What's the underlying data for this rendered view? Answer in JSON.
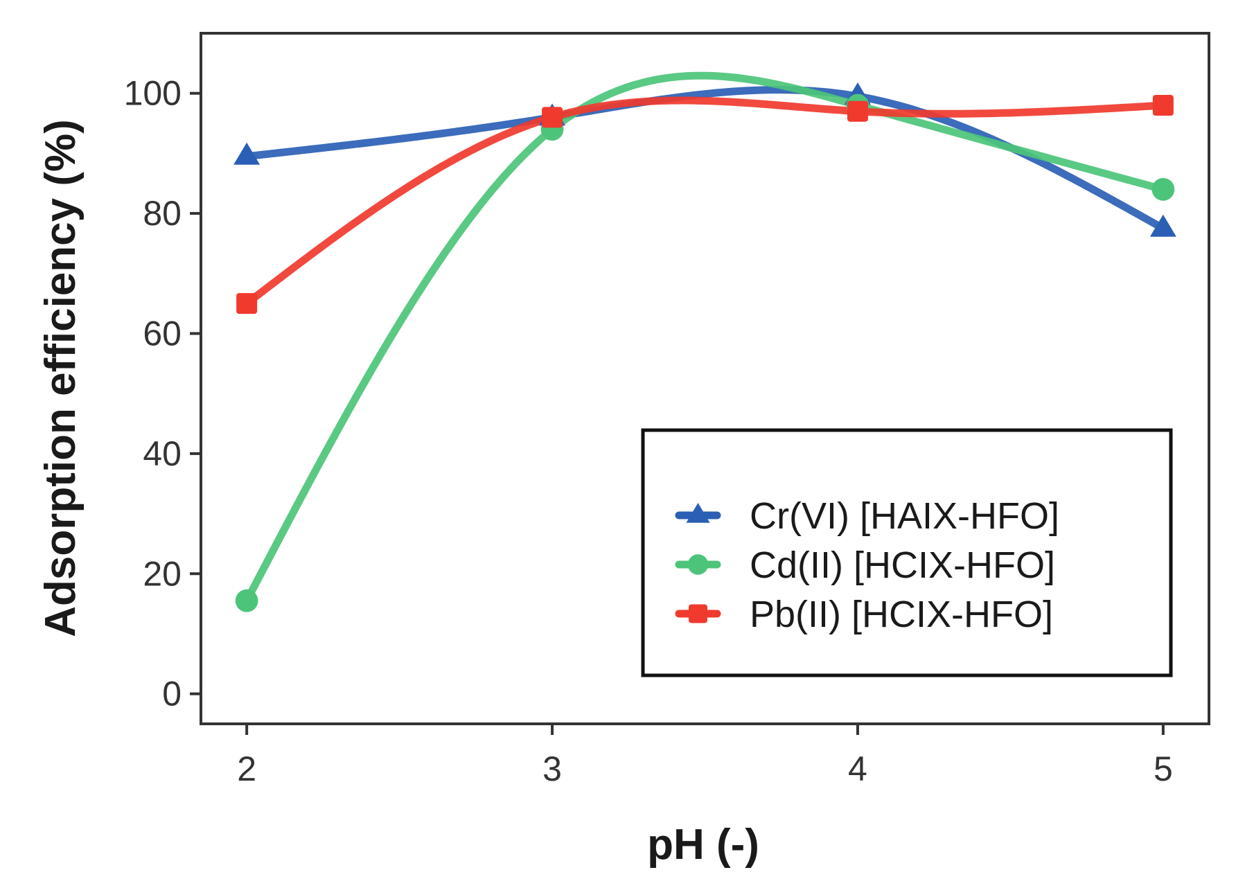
{
  "chart_data": {
    "type": "line",
    "xlabel": "pH (-)",
    "ylabel": "Adsorption efficiency (%)",
    "x": [
      2,
      3,
      4,
      5
    ],
    "xticks": [
      "2",
      "3",
      "4",
      "5"
    ],
    "yticks": [
      "0",
      "20",
      "40",
      "60",
      "80",
      "100"
    ],
    "ytick_values": [
      0,
      20,
      40,
      60,
      80,
      100
    ],
    "xlim": [
      1.85,
      5.15
    ],
    "ylim": [
      -5,
      110
    ],
    "grid": false,
    "legend_position": "bottom-right",
    "smoothed": true,
    "series": [
      {
        "name": "Cr(VI) [HAIX-HFO]",
        "values": [
          89.5,
          96,
          99.5,
          77.5
        ],
        "color": "#2b5fb5",
        "marker": "triangle"
      },
      {
        "name": "Cd(II) [HCIX-HFO]",
        "values": [
          15.5,
          94,
          98,
          84
        ],
        "color": "#4cc47a",
        "marker": "circle"
      },
      {
        "name": "Pb(II) [HCIX-HFO]",
        "values": [
          65,
          96,
          97,
          98
        ],
        "color": "#f03a2e",
        "marker": "square"
      }
    ]
  }
}
